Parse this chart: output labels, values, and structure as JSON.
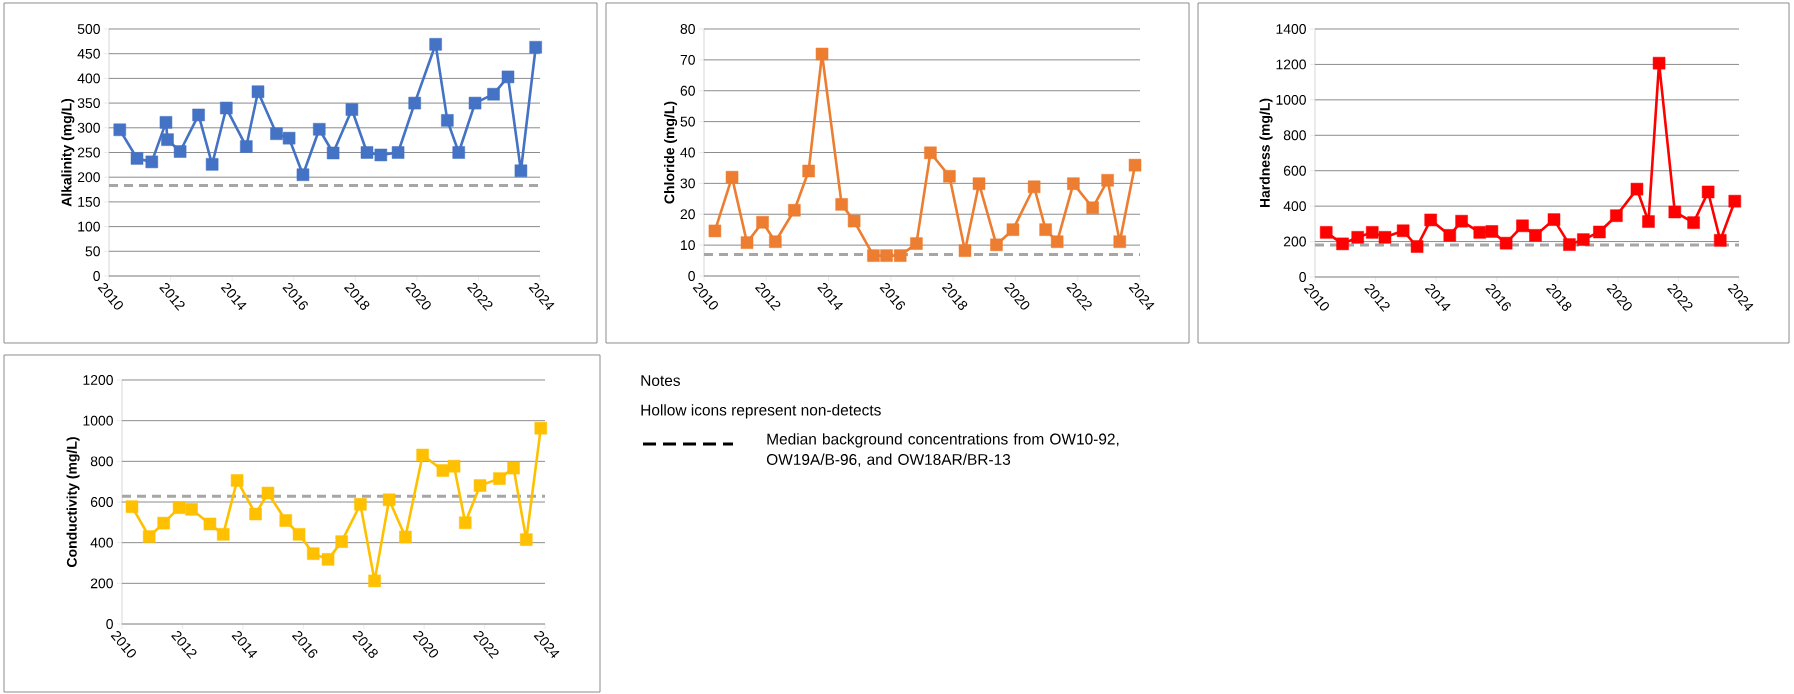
{
  "chart_data": [
    {
      "type": "line",
      "ylabel": "Alkalinity (mg/L)",
      "color": "#4472c4",
      "marker": "square",
      "grid": "y",
      "xlim": [
        2010,
        2024
      ],
      "xticks": [
        2010,
        2012,
        2014,
        2016,
        2018,
        2020,
        2022,
        2024
      ],
      "ylim": [
        0,
        500
      ],
      "yticks": [
        0,
        50,
        100,
        150,
        200,
        250,
        300,
        350,
        400,
        450,
        500
      ],
      "x": [
        2010.35,
        2010.91,
        2011.39,
        2011.85,
        2011.9,
        2012.31,
        2012.91,
        2013.35,
        2013.81,
        2014.46,
        2014.84,
        2015.44,
        2015.85,
        2016.3,
        2016.83,
        2017.28,
        2017.89,
        2018.38,
        2018.83,
        2019.39,
        2019.93,
        2020.61,
        2020.99,
        2021.36,
        2021.89,
        2022.49,
        2022.96,
        2023.38,
        2023.86
      ],
      "values": [
        296,
        238,
        231,
        311,
        276,
        252,
        326,
        226,
        340,
        262,
        373,
        288,
        279,
        205,
        297,
        249,
        337,
        250,
        245,
        250,
        350,
        469,
        315,
        250,
        350,
        368,
        403,
        213,
        463
      ],
      "ref_lines": [
        {
          "axis": "y",
          "value": 183,
          "color": "#a6a6a6",
          "line_style": "dashed"
        }
      ]
    },
    {
      "type": "line",
      "ylabel": "Chloride (mg/L)",
      "color": "#ed7d31",
      "marker": "square",
      "grid": "y",
      "xlim": [
        2010,
        2024
      ],
      "xticks": [
        2010,
        2012,
        2014,
        2016,
        2018,
        2020,
        2022,
        2024
      ],
      "ylim": [
        0,
        80
      ],
      "yticks": [
        0,
        10,
        20,
        30,
        40,
        50,
        60,
        70,
        80
      ],
      "x": [
        2010.35,
        2010.9,
        2011.38,
        2011.88,
        2012.29,
        2012.9,
        2013.36,
        2013.79,
        2014.42,
        2014.82,
        2015.44,
        2015.86,
        2016.3,
        2016.82,
        2017.27,
        2017.88,
        2018.38,
        2018.83,
        2019.39,
        2019.92,
        2020.6,
        2020.97,
        2021.34,
        2021.86,
        2022.48,
        2022.96,
        2023.35,
        2023.84
      ],
      "values": [
        14.6,
        32,
        10.8,
        17.4,
        11.1,
        21.3,
        34,
        71.9,
        23.2,
        17.8,
        6.6,
        6.6,
        6.6,
        10.5,
        39.9,
        32.3,
        8.2,
        29.9,
        10.1,
        15,
        28.9,
        15,
        11.1,
        29.9,
        22.1,
        31,
        11.1,
        35.9
      ],
      "ref_lines": [
        {
          "axis": "y",
          "value": 7,
          "color": "#a6a6a6",
          "line_style": "dashed"
        }
      ]
    },
    {
      "type": "line",
      "ylabel": "Hardness (mg/L)",
      "color": "#ff0000",
      "marker": "square",
      "grid": "y",
      "xlim": [
        2010,
        2024
      ],
      "xticks": [
        2010,
        2012,
        2014,
        2016,
        2018,
        2020,
        2022,
        2024
      ],
      "ylim": [
        0,
        1400
      ],
      "yticks": [
        0,
        200,
        400,
        600,
        800,
        1000,
        1200,
        1400
      ],
      "x": [
        2010.37,
        2010.91,
        2011.41,
        2011.89,
        2012.31,
        2012.91,
        2013.37,
        2013.82,
        2014.45,
        2014.84,
        2015.44,
        2015.84,
        2016.31,
        2016.85,
        2017.28,
        2017.89,
        2018.4,
        2018.86,
        2019.39,
        2019.95,
        2020.63,
        2021.01,
        2021.36,
        2021.88,
        2022.5,
        2022.98,
        2023.38,
        2023.86
      ],
      "values": [
        252,
        187,
        224,
        252,
        224,
        261,
        172,
        322,
        235,
        315,
        252,
        257,
        191,
        289,
        235,
        324,
        183,
        211,
        254,
        346,
        496,
        313,
        1207,
        367,
        307,
        480,
        207,
        428
      ],
      "ref_lines": [
        {
          "axis": "y",
          "value": 180,
          "color": "#a6a6a6",
          "line_style": "dashed"
        }
      ]
    },
    {
      "type": "line",
      "ylabel": "Conductivity (mg/L)",
      "color": "#ffc000",
      "marker": "square",
      "grid": "y",
      "xlim": [
        2010,
        2024
      ],
      "xticks": [
        2010,
        2012,
        2014,
        2016,
        2018,
        2020,
        2022,
        2024
      ],
      "ylim": [
        0,
        1200
      ],
      "yticks": [
        0,
        200,
        400,
        600,
        800,
        1000,
        1200
      ],
      "x": [
        2010.33,
        2010.9,
        2011.38,
        2011.89,
        2012.3,
        2012.91,
        2013.35,
        2013.81,
        2014.42,
        2014.83,
        2015.42,
        2015.86,
        2016.33,
        2016.82,
        2017.27,
        2017.89,
        2018.36,
        2018.84,
        2019.38,
        2019.95,
        2020.62,
        2020.99,
        2021.36,
        2021.85,
        2022.49,
        2022.96,
        2023.38,
        2023.86
      ],
      "values": [
        577,
        430,
        496,
        572,
        564,
        492,
        441,
        706,
        541,
        644,
        509,
        441,
        346,
        318,
        405,
        589,
        212,
        611,
        428,
        831,
        755,
        776,
        498,
        681,
        715,
        767,
        415,
        963
      ],
      "ref_lines": [
        {
          "axis": "y",
          "value": 628,
          "color": "#a6a6a6",
          "line_style": "dashed"
        }
      ]
    },
    {
      "type": "other",
      "annotations": [
        "Notes",
        "Hollow icons represent non-detects",
        "Median background concentrations from OW10-92, OW19A/B-96, and OW18AR/BR-13"
      ]
    }
  ]
}
